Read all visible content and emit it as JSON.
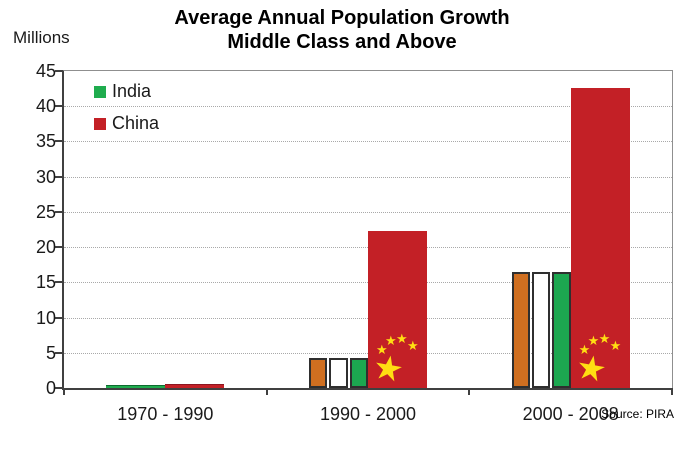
{
  "title": {
    "line1": "Average Annual Population Growth",
    "line2": "Middle Class and Above"
  },
  "y_axis": {
    "unit_label": "Millions",
    "tick_labels": [
      "0",
      "5",
      "10",
      "15",
      "20",
      "25",
      "30",
      "35",
      "40",
      "45"
    ]
  },
  "legend": [
    {
      "label": "India",
      "color": "#1FAC4E"
    },
    {
      "label": "China",
      "color": "#C32026"
    }
  ],
  "source": "Source: PIRA",
  "chart_data": {
    "type": "bar",
    "title": "Average Annual Population Growth Middle Class and Above",
    "xlabel": "",
    "ylabel": "Millions",
    "categories": [
      "1970 - 1990",
      "1990 - 2000",
      "2000 - 2008"
    ],
    "series": [
      {
        "name": "India",
        "values": [
          0.3,
          4.2,
          16.4
        ],
        "color": "#1FAC4E",
        "fill_style": "india-flag-vertical-stripes"
      },
      {
        "name": "China",
        "values": [
          0.4,
          22.3,
          42.6
        ],
        "color": "#C32026",
        "fill_style": "china-flag-red-with-stars"
      }
    ],
    "ylim": [
      0,
      45
    ],
    "ytick_step": 5,
    "grid": "horizontal-dotted",
    "legend_position": "top-left-inside"
  },
  "colors": {
    "india_orange": "#D06F20",
    "india_white": "#FFFFFF",
    "india_green": "#1CA750",
    "india_solid_green": "#1FAC4E",
    "china_red": "#C32026",
    "china_red_dark_edge": "#8D1620",
    "india_green_dark_edge": "#0E6B30",
    "star_yellow": "#FFDE12",
    "axis": "#404040",
    "gridline": "#A9A9A9"
  }
}
